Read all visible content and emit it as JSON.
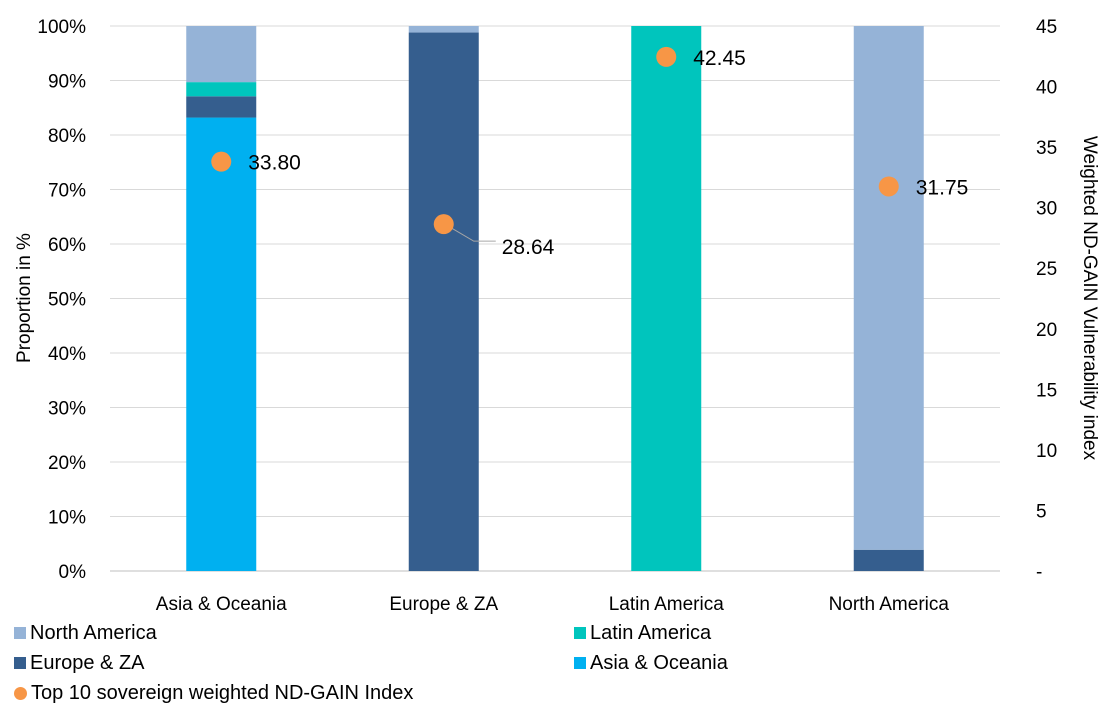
{
  "chart_data": {
    "type": "bar",
    "stacked": true,
    "categories": [
      "Asia & Oceania",
      "Europe & ZA",
      "Latin America",
      "North America"
    ],
    "series": [
      {
        "name": "Asia & Oceania",
        "color": "#00B0F0",
        "values": [
          83.2,
          0,
          0,
          0
        ]
      },
      {
        "name": "Europe & ZA",
        "color": "#355E8E",
        "values": [
          3.9,
          98.8,
          0,
          3.9
        ]
      },
      {
        "name": "Latin America",
        "color": "#00C5BD",
        "values": [
          2.6,
          0,
          100,
          0
        ]
      },
      {
        "name": "North America",
        "color": "#95B3D7",
        "values": [
          10.3,
          1.2,
          0,
          96.1
        ]
      }
    ],
    "overlay": {
      "type": "scatter",
      "name": "Top 10 sovereign weighted ND-GAIN Index",
      "color": "#F79646",
      "values": [
        33.8,
        28.64,
        42.45,
        31.75
      ],
      "labels": [
        "33.80",
        "28.64",
        "42.45",
        "31.75"
      ]
    },
    "ylabel": "Proportion in %",
    "ylim": [
      0,
      100
    ],
    "yticks": [
      "0%",
      "10%",
      "20%",
      "30%",
      "40%",
      "50%",
      "60%",
      "70%",
      "80%",
      "90%",
      "100%"
    ],
    "y2label": "Weighted ND-GAIN  Vulnerability index",
    "y2lim": [
      0,
      45
    ],
    "y2ticks": [
      "-",
      "5",
      "10",
      "15",
      "20",
      "25",
      "30",
      "35",
      "40",
      "45"
    ],
    "grid": true,
    "legend_position": "bottom"
  },
  "legend": {
    "items": [
      {
        "label": "North America",
        "color": "#95B3D7",
        "shape": "square"
      },
      {
        "label": "Latin America",
        "color": "#00C5BD",
        "shape": "square"
      },
      {
        "label": "Europe & ZA",
        "color": "#355E8E",
        "shape": "square"
      },
      {
        "label": "Asia & Oceania",
        "color": "#00B0F0",
        "shape": "square"
      },
      {
        "label": "Top 10 sovereign weighted ND-GAIN Index",
        "color": "#F79646",
        "shape": "circle"
      }
    ]
  }
}
